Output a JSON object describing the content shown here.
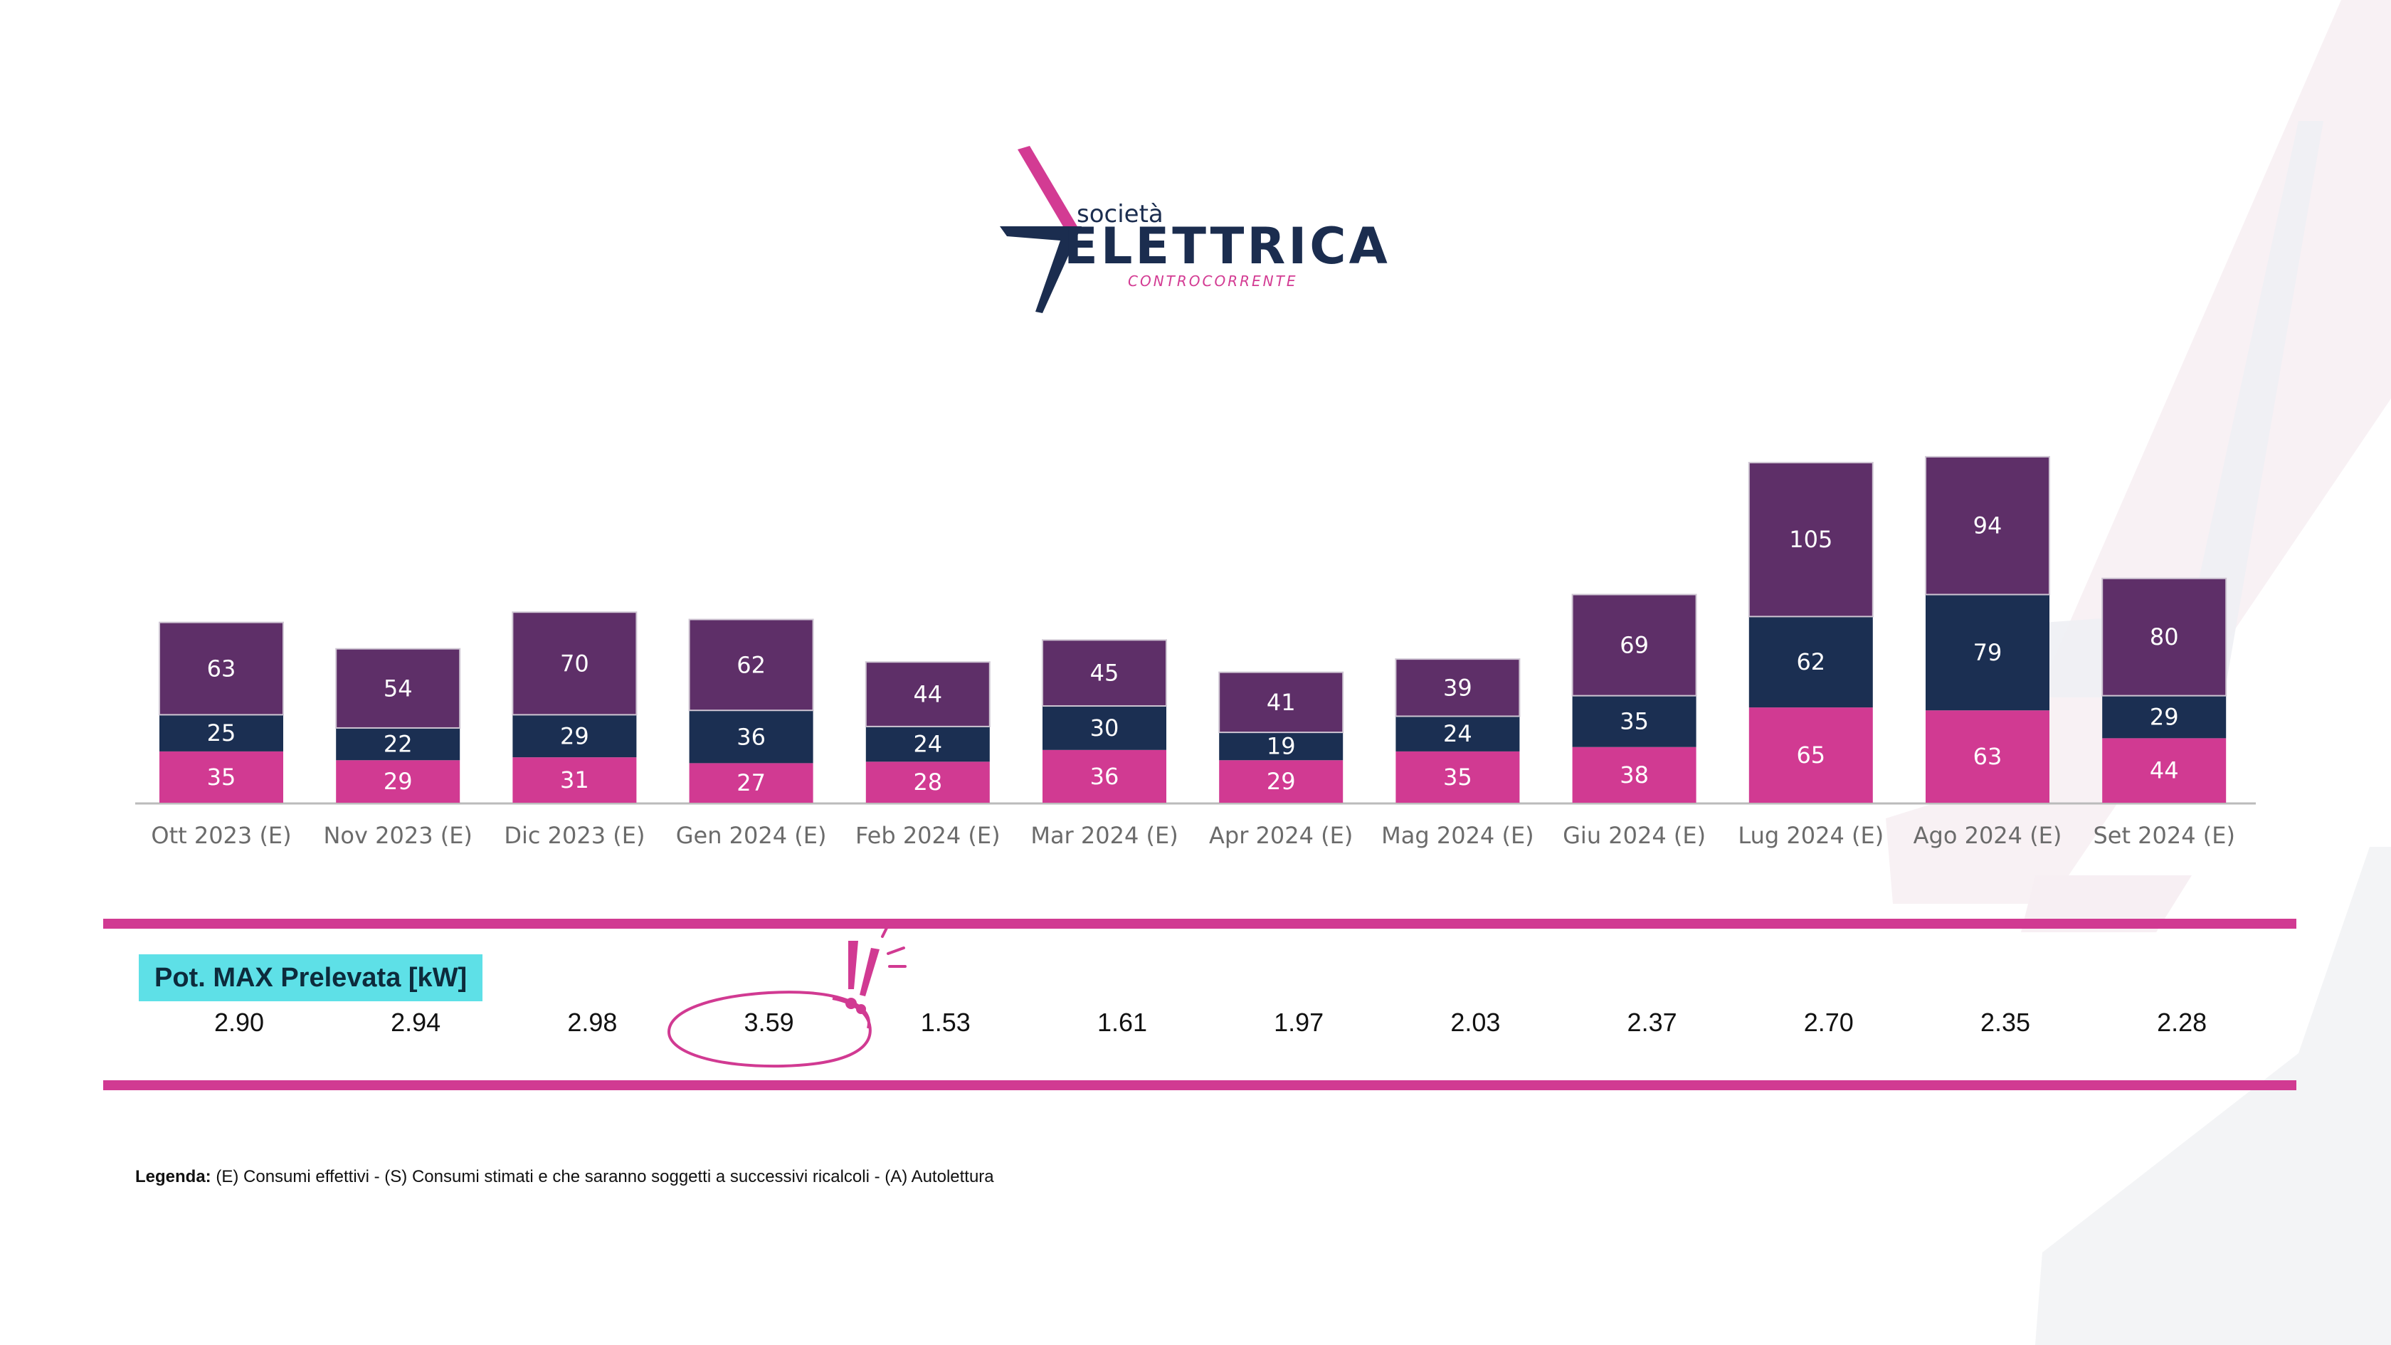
{
  "brand": {
    "logo_small": "società",
    "logo_main": "ELETTRICA",
    "logo_sub": "CONTROCORRENTE"
  },
  "colors": {
    "top_segment": "#5e2f68",
    "middle_segment": "#1b2f52",
    "bottom_segment": "#d13a92",
    "accent": "#d13a92",
    "badge": "#5ee0e7",
    "axis": "#bbbbbb"
  },
  "chart_data": {
    "type": "bar",
    "stacked": true,
    "categories": [
      "Ott 2023 (E)",
      "Nov 2023 (E)",
      "Dic 2023 (E)",
      "Gen 2024 (E)",
      "Feb 2024 (E)",
      "Mar 2024 (E)",
      "Apr 2024 (E)",
      "Mag 2024 (E)",
      "Giu 2024 (E)",
      "Lug 2024 (E)",
      "Ago 2024 (E)",
      "Set 2024 (E)"
    ],
    "series": [
      {
        "name": "bottom",
        "color": "#d13a92",
        "values": [
          35,
          29,
          31,
          27,
          28,
          36,
          29,
          35,
          38,
          65,
          63,
          44
        ]
      },
      {
        "name": "middle",
        "color": "#1b2f52",
        "values": [
          25,
          22,
          29,
          36,
          24,
          30,
          19,
          24,
          35,
          62,
          79,
          29
        ]
      },
      {
        "name": "top",
        "color": "#5e2f68",
        "values": [
          63,
          54,
          70,
          62,
          44,
          45,
          41,
          39,
          69,
          105,
          94,
          80
        ]
      }
    ],
    "title": "",
    "xlabel": "",
    "ylabel": "",
    "ylim": [
      0,
      240
    ],
    "grid": false,
    "data_labels": true
  },
  "potenza": {
    "title": "Pot. MAX Prelevata [kW]",
    "values": [
      "2.90",
      "2.94",
      "2.98",
      "3.59",
      "1.53",
      "1.61",
      "1.97",
      "2.03",
      "2.37",
      "2.70",
      "2.35",
      "2.28"
    ],
    "highlighted": "3.59"
  },
  "legend": {
    "label": "Legenda:",
    "text": " (E) Consumi effettivi - (S) Consumi stimati e che saranno soggetti a successivi ricalcoli - (A) Autolettura"
  }
}
